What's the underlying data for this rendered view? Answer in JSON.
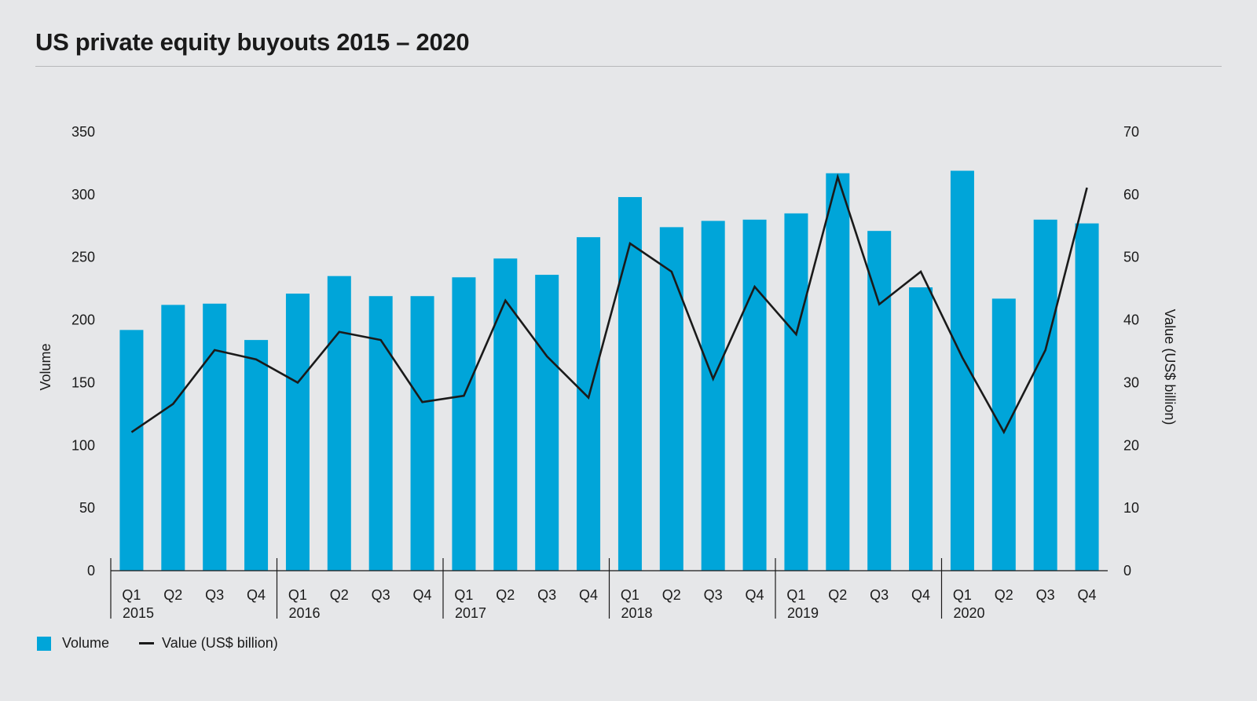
{
  "title": "US private equity buyouts 2015 – 2020",
  "colors": {
    "bar": "#00a5d9",
    "line": "#1a1a1a",
    "axis": "#1a1a1a"
  },
  "chart_data": {
    "type": "bar+line",
    "title": "US private equity buyouts 2015 – 2020",
    "ylabel": "Volume",
    "y2label": "Value (US$ billion)",
    "ylim": [
      0,
      350
    ],
    "y2lim": [
      0,
      70
    ],
    "yticks": [
      0,
      50,
      100,
      150,
      200,
      250,
      300,
      350
    ],
    "y2ticks": [
      0,
      10,
      20,
      30,
      40,
      50,
      60,
      70
    ],
    "groups": [
      {
        "year": "2015",
        "quarters": [
          "Q1",
          "Q2",
          "Q3",
          "Q4"
        ]
      },
      {
        "year": "2016",
        "quarters": [
          "Q1",
          "Q2",
          "Q3",
          "Q4"
        ]
      },
      {
        "year": "2017",
        "quarters": [
          "Q1",
          "Q2",
          "Q3",
          "Q4"
        ]
      },
      {
        "year": "2018",
        "quarters": [
          "Q1",
          "Q2",
          "Q3",
          "Q4"
        ]
      },
      {
        "year": "2019",
        "quarters": [
          "Q1",
          "Q2",
          "Q3",
          "Q4"
        ]
      },
      {
        "year": "2020",
        "quarters": [
          "Q1",
          "Q2",
          "Q3",
          "Q4"
        ]
      }
    ],
    "series": [
      {
        "name": "Volume",
        "type": "bar",
        "axis": "left",
        "values": [
          192,
          212,
          213,
          184,
          221,
          235,
          219,
          219,
          234,
          249,
          236,
          266,
          298,
          274,
          279,
          280,
          285,
          317,
          271,
          226,
          319,
          217,
          280,
          277
        ]
      },
      {
        "name": "Value (US$ billion)",
        "type": "line",
        "axis": "right",
        "values": [
          22.1,
          26.6,
          35.2,
          33.7,
          30.0,
          38.1,
          36.8,
          26.9,
          27.9,
          43.1,
          34.2,
          27.6,
          52.2,
          47.7,
          30.6,
          45.3,
          37.7,
          62.8,
          42.5,
          47.7,
          34.0,
          22.1,
          35.2,
          61.1
        ]
      }
    ],
    "legend": {
      "position": "bottom-left",
      "entries": [
        "Volume",
        "Value (US$ billion)"
      ]
    }
  }
}
